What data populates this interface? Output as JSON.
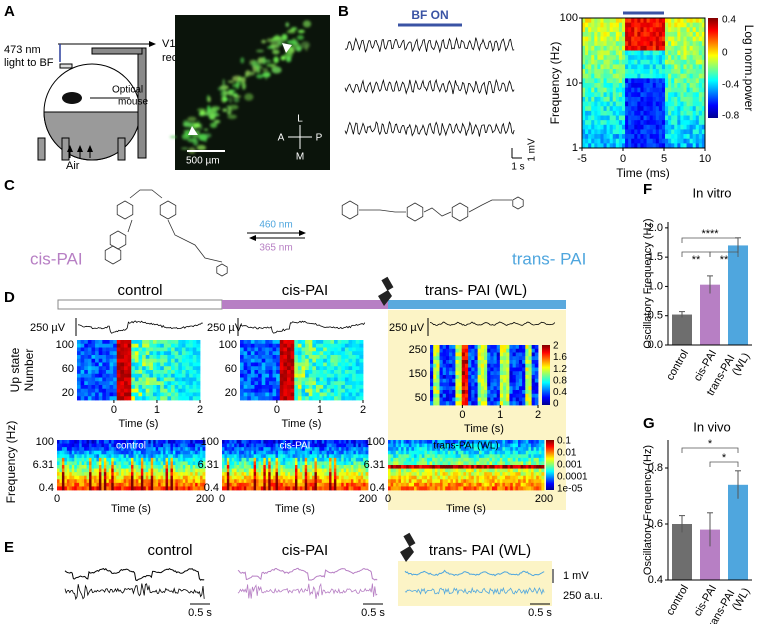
{
  "figure": {
    "A": {
      "label": "A",
      "light": [
        "473 nm",
        "light to BF"
      ],
      "recording": [
        "V1",
        "recording"
      ],
      "mouse": [
        "Optical",
        "mouse"
      ],
      "air": "Air",
      "compass": [
        "L",
        "A",
        "P",
        "M"
      ],
      "scale": "500 µm"
    },
    "B": {
      "label": "B",
      "stim": "BF ON",
      "scale": [
        "1 mV",
        "1 s"
      ],
      "spectrogram": {
        "ylabel": "Frequency (Hz)",
        "xlabel": "Time (ms)",
        "yticks": [
          "100",
          "10",
          "1"
        ],
        "xticks": [
          "-5",
          "0",
          "5",
          "10"
        ],
        "colorbar_label": "Log norm.power",
        "colorbar_ticks": [
          "0.4",
          "0",
          "-0.4",
          "-0.8"
        ]
      }
    },
    "C": {
      "label": "C",
      "left": "cis-PAI",
      "right": "trans- PAI",
      "forward": "460 nm",
      "backward": "365 nm"
    },
    "D": {
      "label": "D",
      "conditions": [
        "control",
        "cis-PAI",
        "trans- PAI (WL)"
      ],
      "trace_scale": "250 µV",
      "raster_ylabel": [
        "Up state",
        "Number"
      ],
      "raster_yticks": [
        [
          "100",
          "60",
          "20"
        ],
        [
          "100",
          "60",
          "20"
        ],
        [
          "250",
          "150",
          "50"
        ]
      ],
      "raster_xticks": [
        "0",
        "1",
        "2"
      ],
      "xlabel": "Time (s)",
      "raster_cbar": [
        "2",
        "1.6",
        "1.2",
        "0.8",
        "0.4",
        "0"
      ],
      "spec_titles": [
        "control",
        "cis-PAI",
        "trans-PAI (WL)"
      ],
      "spec_ylabel": "Frequency (Hz)",
      "spec_yticks": [
        "100",
        "6.31",
        "0.4"
      ],
      "spec_xticks": [
        "0",
        "200"
      ],
      "spec_cbar": [
        "0.1",
        "0.01",
        "0.001",
        "0.0001",
        "1e-05"
      ]
    },
    "E": {
      "label": "E",
      "conditions": [
        "control",
        "cis-PAI",
        "trans- PAI (WL)"
      ],
      "time_scale": "0.5 s",
      "scale": [
        "1 mV",
        "250 a.u."
      ]
    }
  },
  "chart_data": [
    {
      "type": "bar",
      "label": "F",
      "title": "In vitro",
      "ylabel": "Oscillatory Frequency (Hz)",
      "categories": [
        "control",
        "cis-PAI",
        "trans-PAI (WL)"
      ],
      "values": [
        0.52,
        1.03,
        1.7
      ],
      "errors": [
        0.05,
        0.15,
        0.13
      ],
      "colors": [
        "#6e6e6e",
        "#b77fc4",
        "#4fa6de"
      ],
      "ylim": [
        0,
        2.1
      ],
      "yticks": [
        {
          "value": 0,
          "label": "0.0"
        },
        {
          "value": 0.5,
          "label": "0.5"
        },
        {
          "value": 1,
          "label": "1.0"
        },
        {
          "value": 1.5,
          "label": "1.5"
        },
        {
          "value": 2,
          "label": "2.0"
        }
      ],
      "annotations": [
        "**",
        "****",
        "**"
      ]
    },
    {
      "type": "bar",
      "label": "G",
      "title": "In vivo",
      "ylabel": "Oscillatory Frequency (Hz)",
      "categories": [
        "control",
        "cis-PAI",
        "trans-PAI (WL)"
      ],
      "values": [
        0.6,
        0.58,
        0.74
      ],
      "errors": [
        0.03,
        0.06,
        0.05
      ],
      "colors": [
        "#6e6e6e",
        "#b77fc4",
        "#4fa6de"
      ],
      "ylim": [
        0.4,
        0.9
      ],
      "yticks": [
        0.4,
        0.6,
        0.8
      ],
      "annotations": [
        "*",
        "*"
      ]
    }
  ]
}
